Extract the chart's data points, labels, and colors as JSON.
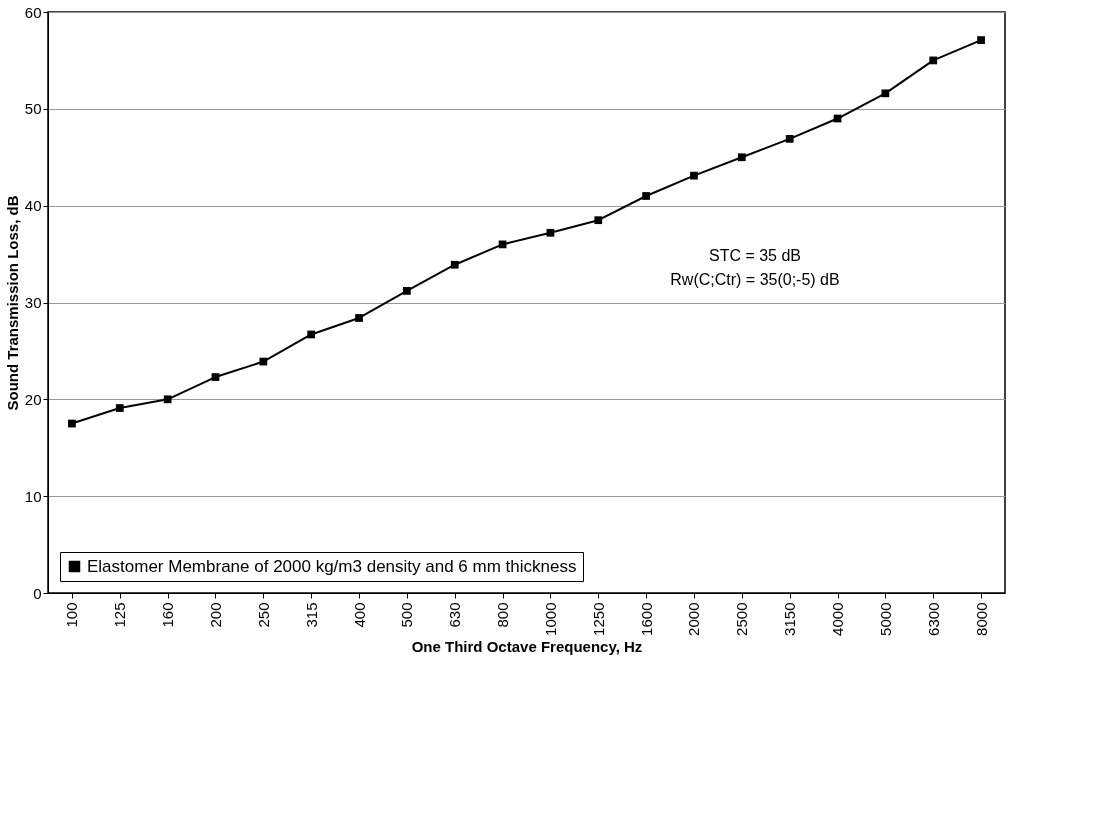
{
  "chart_data": {
    "type": "line",
    "xlabel": "One Third  Octave Frequency, Hz",
    "ylabel": "Sound Transmission Loss, dB",
    "categories": [
      "100",
      "125",
      "160",
      "200",
      "250",
      "315",
      "400",
      "500",
      "630",
      "800",
      "1000",
      "1250",
      "1600",
      "2000",
      "2500",
      "3150",
      "4000",
      "5000",
      "6300",
      "8000"
    ],
    "series": [
      {
        "name": "Elastomer Membrane of 2000 kg/m3 density and 6 mm thickness",
        "color": "#000000",
        "values": [
          17.5,
          19.1,
          20.0,
          22.3,
          23.9,
          26.7,
          28.4,
          31.2,
          33.9,
          36.0,
          37.2,
          38.5,
          41.0,
          43.1,
          45.0,
          46.9,
          49.0,
          51.6,
          55.0,
          57.1
        ]
      }
    ],
    "ylim": [
      0,
      60
    ],
    "yticks": [
      0,
      10,
      20,
      30,
      40,
      50,
      60
    ],
    "grid": "y",
    "legend": "bottom left",
    "marker": "square",
    "line_style": "solid",
    "annotations": [
      "STC = 35 dB",
      "Rw(C;Ctr) = 35(0;-5) dB"
    ]
  }
}
